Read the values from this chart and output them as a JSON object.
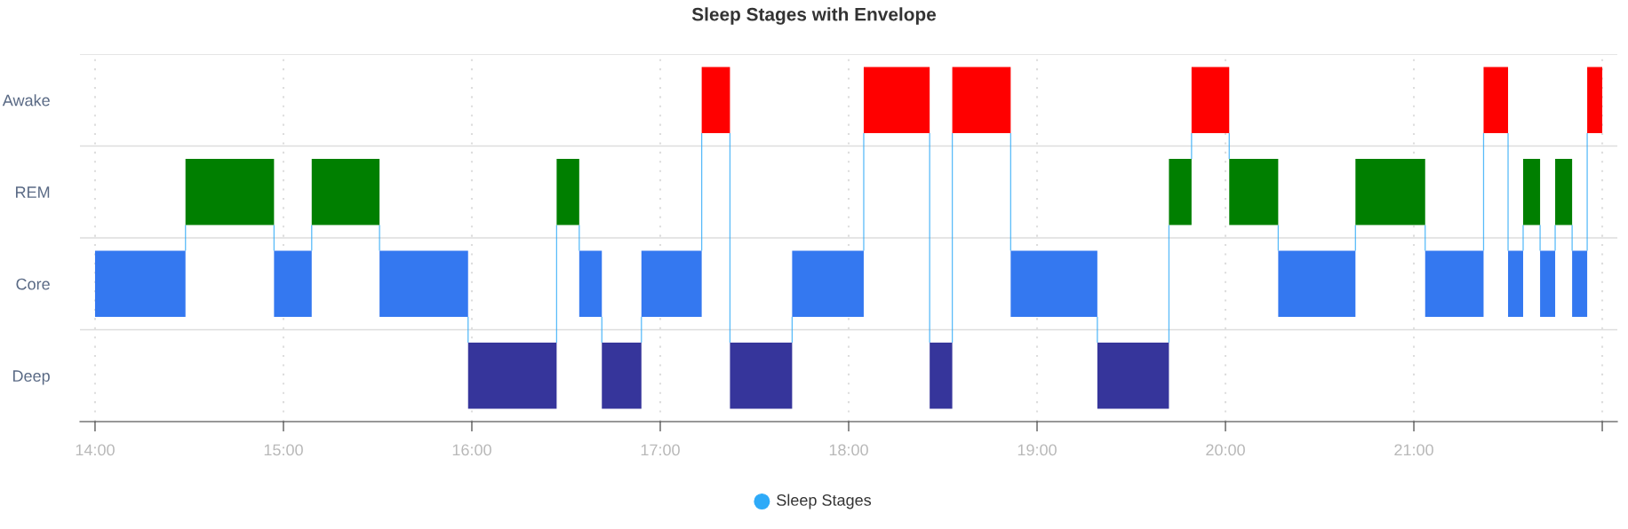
{
  "chart_data": {
    "type": "bar",
    "orientation": "horizontal",
    "title": "Sleep Stages with Envelope",
    "categories": [
      "Awake",
      "REM",
      "Core",
      "Deep"
    ],
    "series": [
      {
        "color": "#3478f0",
        "values": [
          null,
          null,
          0.48,
          null
        ],
        "base": [
          null,
          null,
          14.0,
          null
        ]
      },
      {
        "color": "#007f00",
        "values": [
          null,
          0.47,
          null,
          null
        ],
        "base": [
          null,
          14.48,
          null,
          null
        ]
      },
      {
        "color": "#3478f0",
        "values": [
          null,
          null,
          0.2,
          null
        ],
        "base": [
          null,
          null,
          14.95,
          null
        ]
      },
      {
        "color": "#007f00",
        "values": [
          null,
          0.36,
          null,
          null
        ],
        "base": [
          null,
          15.15,
          null,
          null
        ]
      },
      {
        "color": "#3478f0",
        "values": [
          null,
          null,
          0.47,
          null
        ],
        "base": [
          null,
          null,
          15.51,
          null
        ]
      },
      {
        "color": "#36359b",
        "values": [
          null,
          null,
          null,
          0.47
        ],
        "base": [
          null,
          null,
          null,
          15.98
        ]
      },
      {
        "color": "#007f00",
        "values": [
          null,
          0.12,
          null,
          null
        ],
        "base": [
          null,
          16.45,
          null,
          null
        ]
      },
      {
        "color": "#3478f0",
        "values": [
          null,
          null,
          0.12,
          null
        ],
        "base": [
          null,
          null,
          16.57,
          null
        ]
      },
      {
        "color": "#36359b",
        "values": [
          null,
          null,
          null,
          0.21
        ],
        "base": [
          null,
          null,
          null,
          16.69
        ]
      },
      {
        "color": "#3478f0",
        "values": [
          null,
          null,
          0.32,
          null
        ],
        "base": [
          null,
          null,
          16.9,
          null
        ]
      },
      {
        "color": "#ff0000",
        "values": [
          0.15,
          null,
          null,
          null
        ],
        "base": [
          17.22,
          null,
          null,
          null
        ]
      },
      {
        "color": "#36359b",
        "values": [
          null,
          null,
          null,
          0.33
        ],
        "base": [
          null,
          null,
          null,
          17.37
        ]
      },
      {
        "color": "#3478f0",
        "values": [
          null,
          null,
          0.38,
          null
        ],
        "base": [
          null,
          null,
          17.7,
          null
        ]
      },
      {
        "color": "#ff0000",
        "values": [
          0.35,
          null,
          null,
          null
        ],
        "base": [
          18.08,
          null,
          null,
          null
        ]
      },
      {
        "color": "#36359b",
        "values": [
          null,
          null,
          null,
          0.12
        ],
        "base": [
          null,
          null,
          null,
          18.43
        ]
      },
      {
        "color": "#ff0000",
        "values": [
          0.31,
          null,
          null,
          null
        ],
        "base": [
          18.55,
          null,
          null,
          null
        ]
      },
      {
        "color": "#3478f0",
        "values": [
          null,
          null,
          0.46,
          null
        ],
        "base": [
          null,
          null,
          18.86,
          null
        ]
      },
      {
        "color": "#36359b",
        "values": [
          null,
          null,
          null,
          0.38
        ],
        "base": [
          null,
          null,
          null,
          19.32
        ]
      },
      {
        "color": "#007f00",
        "values": [
          null,
          0.12,
          null,
          null
        ],
        "base": [
          null,
          19.7,
          null,
          null
        ]
      },
      {
        "color": "#ff0000",
        "values": [
          0.2,
          null,
          null,
          null
        ],
        "base": [
          19.82,
          null,
          null,
          null
        ]
      },
      {
        "color": "#007f00",
        "values": [
          null,
          0.26,
          null,
          null
        ],
        "base": [
          null,
          20.02,
          null,
          null
        ]
      },
      {
        "color": "#3478f0",
        "values": [
          null,
          null,
          0.41,
          null
        ],
        "base": [
          null,
          null,
          20.28,
          null
        ]
      },
      {
        "color": "#007f00",
        "values": [
          null,
          0.37,
          null,
          null
        ],
        "base": [
          null,
          20.69,
          null,
          null
        ]
      },
      {
        "color": "#3478f0",
        "values": [
          null,
          null,
          0.31,
          null
        ],
        "base": [
          null,
          null,
          21.06,
          null
        ]
      },
      {
        "color": "#ff0000",
        "values": [
          0.13,
          null,
          null,
          null
        ],
        "base": [
          21.37,
          null,
          null,
          null
        ]
      },
      {
        "color": "#3478f0",
        "values": [
          null,
          null,
          0.08,
          null
        ],
        "base": [
          null,
          null,
          21.5,
          null
        ]
      },
      {
        "color": "#007f00",
        "values": [
          null,
          0.09,
          null,
          null
        ],
        "base": [
          null,
          21.58,
          null,
          null
        ]
      },
      {
        "color": "#3478f0",
        "values": [
          null,
          null,
          0.08,
          null
        ],
        "base": [
          null,
          null,
          21.67,
          null
        ]
      },
      {
        "color": "#007f00",
        "values": [
          null,
          0.09,
          null,
          null
        ],
        "base": [
          null,
          21.75,
          null,
          null
        ]
      },
      {
        "color": "#3478f0",
        "values": [
          null,
          null,
          0.08,
          null
        ],
        "base": [
          null,
          null,
          21.84,
          null
        ]
      },
      {
        "color": "#ff0000",
        "values": [
          0.08,
          null,
          null,
          null
        ],
        "base": [
          21.92,
          null,
          null,
          null
        ]
      }
    ],
    "xlim": [
      13.92,
      22.08
    ],
    "xticks": [
      {
        "value": 14,
        "label": "14:00"
      },
      {
        "value": 15,
        "label": "15:00"
      },
      {
        "value": 16,
        "label": "16:00"
      },
      {
        "value": 17,
        "label": "17:00"
      },
      {
        "value": 18,
        "label": "18:00"
      },
      {
        "value": 19,
        "label": "19:00"
      },
      {
        "value": 20,
        "label": "20:00"
      },
      {
        "value": 21,
        "label": "21:00"
      },
      {
        "value": 22,
        "label": null
      }
    ],
    "annotations": [
      "Sleep Stages"
    ],
    "grid": true
  }
}
